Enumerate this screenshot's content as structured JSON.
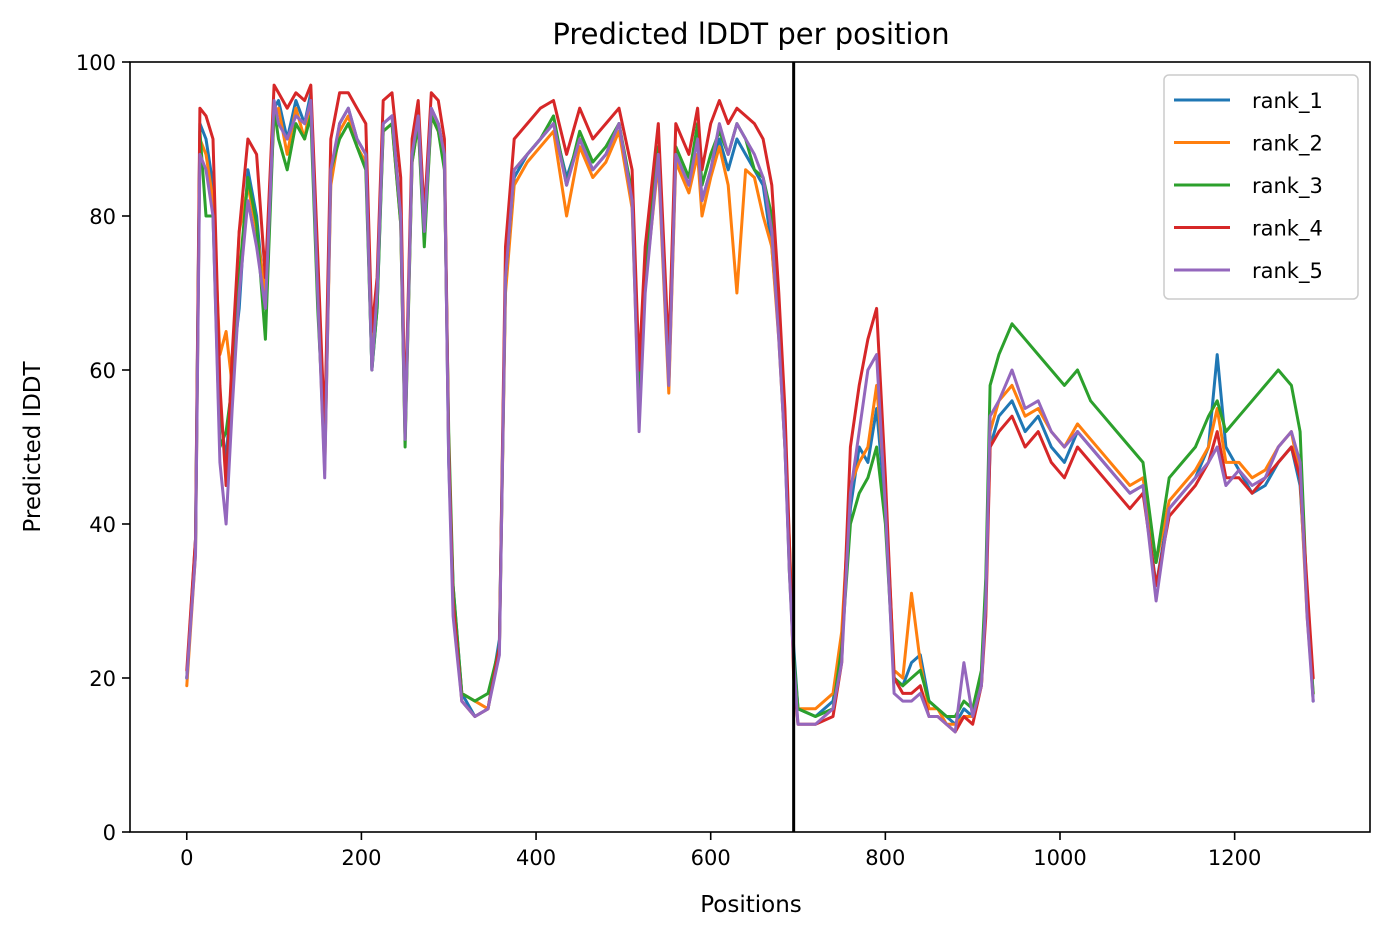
{
  "chart_data": {
    "type": "line",
    "title": "Predicted lDDT per position",
    "xlabel": "Positions",
    "ylabel": "Predicted lDDT",
    "xlim": [
      -65,
      1355
    ],
    "ylim": [
      0,
      100
    ],
    "xticks": [
      0,
      200,
      400,
      600,
      800,
      1000,
      1200
    ],
    "yticks": [
      0,
      20,
      40,
      60,
      80,
      100
    ],
    "grid": false,
    "legend_placement": "top-right",
    "vertical_line_x": 695,
    "vertical_line_color": "#000000",
    "x": [
      0,
      10,
      15,
      22,
      30,
      38,
      45,
      52,
      60,
      70,
      80,
      90,
      100,
      105,
      115,
      125,
      135,
      142,
      150,
      158,
      165,
      175,
      185,
      195,
      205,
      212,
      218,
      225,
      235,
      245,
      250,
      258,
      265,
      272,
      280,
      288,
      295,
      300,
      305,
      315,
      330,
      345,
      358,
      365,
      375,
      390,
      405,
      420,
      435,
      450,
      465,
      480,
      495,
      510,
      518,
      525,
      540,
      552,
      560,
      575,
      585,
      590,
      600,
      610,
      620,
      630,
      640,
      650,
      660,
      670,
      678,
      685,
      690,
      695,
      700,
      720,
      740,
      750,
      760,
      770,
      780,
      790,
      800,
      810,
      820,
      830,
      840,
      850,
      860,
      870,
      880,
      890,
      900,
      910,
      915,
      920,
      930,
      945,
      960,
      975,
      990,
      1005,
      1020,
      1035,
      1050,
      1065,
      1080,
      1095,
      1110,
      1125,
      1140,
      1155,
      1170,
      1180,
      1190,
      1205,
      1220,
      1235,
      1250,
      1265,
      1275,
      1283,
      1290
    ],
    "series": [
      {
        "name": "rank_1",
        "color": "#1f77b4",
        "values": [
          20,
          38,
          92,
          90,
          84,
          55,
          48,
          60,
          68,
          86,
          80,
          68,
          94,
          95,
          90,
          95,
          92,
          96,
          72,
          48,
          85,
          92,
          94,
          90,
          88,
          60,
          68,
          92,
          93,
          80,
          52,
          88,
          93,
          78,
          94,
          92,
          88,
          48,
          32,
          18,
          15,
          16,
          25,
          72,
          85,
          88,
          90,
          92,
          85,
          90,
          86,
          88,
          92,
          82,
          55,
          72,
          88,
          58,
          88,
          84,
          90,
          82,
          86,
          90,
          86,
          90,
          88,
          86,
          84,
          76,
          65,
          50,
          35,
          24,
          16,
          15,
          17,
          24,
          42,
          50,
          48,
          55,
          42,
          20,
          19,
          22,
          23,
          17,
          16,
          15,
          14,
          16,
          15,
          20,
          32,
          50,
          54,
          56,
          52,
          54,
          50,
          48,
          52,
          50,
          48,
          46,
          44,
          45,
          32,
          42,
          44,
          46,
          50,
          62,
          50,
          47,
          44,
          45,
          48,
          50,
          45,
          30,
          17
        ]
      },
      {
        "name": "rank_2",
        "color": "#ff7f0e",
        "values": [
          19,
          36,
          90,
          88,
          82,
          62,
          65,
          58,
          78,
          84,
          78,
          70,
          93,
          94,
          88,
          94,
          90,
          95,
          70,
          47,
          84,
          91,
          93,
          89,
          87,
          62,
          70,
          91,
          92,
          79,
          51,
          87,
          92,
          77,
          93,
          91,
          87,
          50,
          30,
          18,
          17,
          16,
          24,
          70,
          84,
          87,
          89,
          91,
          80,
          89,
          85,
          87,
          91,
          81,
          54,
          71,
          87,
          57,
          87,
          83,
          88,
          80,
          85,
          89,
          84,
          70,
          86,
          85,
          80,
          76,
          64,
          50,
          38,
          22,
          16,
          16,
          18,
          26,
          45,
          48,
          50,
          58,
          44,
          21,
          20,
          31,
          22,
          16,
          16,
          14,
          14,
          15,
          15,
          19,
          30,
          52,
          56,
          58,
          54,
          55,
          52,
          50,
          53,
          51,
          49,
          47,
          45,
          46,
          35,
          43,
          45,
          47,
          50,
          55,
          48,
          48,
          46,
          47,
          50,
          52,
          46,
          28,
          18
        ]
      },
      {
        "name": "rank_3",
        "color": "#2ca02c",
        "values": [
          20,
          37,
          91,
          80,
          80,
          50,
          52,
          58,
          72,
          85,
          79,
          64,
          94,
          90,
          86,
          92,
          90,
          93,
          68,
          50,
          86,
          90,
          92,
          89,
          86,
          60,
          68,
          91,
          92,
          79,
          50,
          87,
          92,
          76,
          93,
          91,
          86,
          52,
          32,
          18,
          17,
          18,
          24,
          72,
          86,
          88,
          90,
          93,
          84,
          91,
          87,
          89,
          92,
          83,
          56,
          73,
          89,
          60,
          89,
          85,
          92,
          84,
          88,
          91,
          88,
          92,
          90,
          86,
          85,
          80,
          66,
          52,
          34,
          23,
          16,
          15,
          16,
          24,
          40,
          44,
          46,
          50,
          40,
          20,
          19,
          20,
          21,
          17,
          16,
          15,
          15,
          17,
          16,
          21,
          33,
          58,
          62,
          66,
          64,
          62,
          60,
          58,
          60,
          56,
          54,
          52,
          50,
          48,
          35,
          46,
          48,
          50,
          54,
          56,
          52,
          54,
          56,
          58,
          60,
          58,
          52,
          30,
          18
        ]
      },
      {
        "name": "rank_4",
        "color": "#d62728",
        "values": [
          21,
          38,
          94,
          93,
          90,
          58,
          45,
          62,
          78,
          90,
          88,
          72,
          97,
          96,
          94,
          96,
          95,
          97,
          75,
          52,
          90,
          96,
          96,
          94,
          92,
          65,
          72,
          95,
          96,
          85,
          53,
          90,
          95,
          80,
          96,
          95,
          90,
          50,
          30,
          17,
          15,
          16,
          24,
          76,
          90,
          92,
          94,
          95,
          88,
          94,
          90,
          92,
          94,
          86,
          60,
          76,
          92,
          62,
          92,
          88,
          94,
          86,
          92,
          95,
          92,
          94,
          93,
          92,
          90,
          84,
          70,
          55,
          38,
          20,
          14,
          14,
          15,
          22,
          50,
          58,
          64,
          68,
          46,
          20,
          18,
          18,
          19,
          15,
          15,
          14,
          13,
          15,
          14,
          19,
          28,
          50,
          52,
          54,
          50,
          52,
          48,
          46,
          50,
          48,
          46,
          44,
          42,
          44,
          32,
          41,
          43,
          45,
          48,
          52,
          46,
          46,
          44,
          46,
          48,
          50,
          46,
          32,
          20
        ]
      },
      {
        "name": "rank_5",
        "color": "#9467bd",
        "values": [
          20,
          36,
          88,
          86,
          80,
          48,
          40,
          55,
          70,
          82,
          76,
          68,
          95,
          92,
          90,
          93,
          92,
          95,
          70,
          46,
          86,
          92,
          94,
          90,
          88,
          60,
          70,
          92,
          93,
          80,
          51,
          88,
          93,
          78,
          94,
          92,
          88,
          48,
          28,
          17,
          15,
          16,
          23,
          72,
          86,
          88,
          90,
          92,
          84,
          90,
          86,
          88,
          92,
          82,
          52,
          70,
          88,
          58,
          88,
          84,
          90,
          82,
          86,
          92,
          88,
          92,
          90,
          88,
          85,
          78,
          64,
          50,
          34,
          22,
          14,
          14,
          16,
          22,
          44,
          52,
          60,
          62,
          42,
          18,
          17,
          17,
          18,
          15,
          15,
          14,
          13,
          22,
          15,
          19,
          30,
          54,
          56,
          60,
          55,
          56,
          52,
          50,
          52,
          50,
          48,
          46,
          44,
          45,
          30,
          42,
          44,
          46,
          48,
          50,
          45,
          47,
          45,
          46,
          50,
          52,
          48,
          28,
          17
        ]
      }
    ]
  }
}
